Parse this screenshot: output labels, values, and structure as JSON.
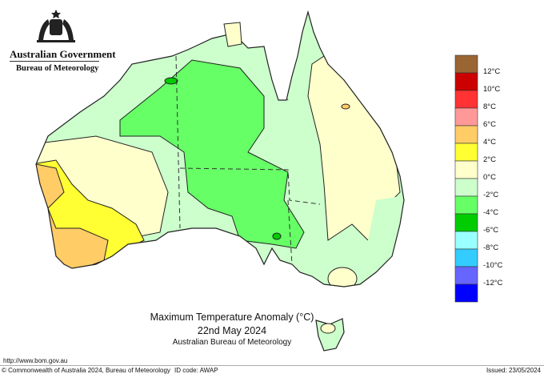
{
  "header": {
    "government": "Australian Government",
    "agency": "Bureau of Meteorology"
  },
  "map": {
    "title": "Maximum Temperature Anomaly (°C)",
    "date": "22nd May 2024",
    "credit": "Australian Bureau of Meteorology"
  },
  "legend": {
    "colors": [
      "#996633",
      "#cc0000",
      "#ff3333",
      "#ff9999",
      "#ffcc66",
      "#ffff33",
      "#ffffcc",
      "#ccffcc",
      "#66ff66",
      "#00cc00",
      "#99ffff",
      "#33ccff",
      "#6666ff",
      "#0000ff"
    ],
    "labels": [
      "12°C",
      "10°C",
      "8°C",
      "6°C",
      "4°C",
      "2°C",
      "0°C",
      "-2°C",
      "-4°C",
      "-6°C",
      "-8°C",
      "-10°C",
      "-12°C"
    ]
  },
  "footer": {
    "url": "http://www.bom.gov.au",
    "copyright": "© Commonwealth of Australia 2024, Bureau of Meteorology",
    "id_code": "ID code: AWAP",
    "issued": "Issued: 23/05/2024"
  }
}
